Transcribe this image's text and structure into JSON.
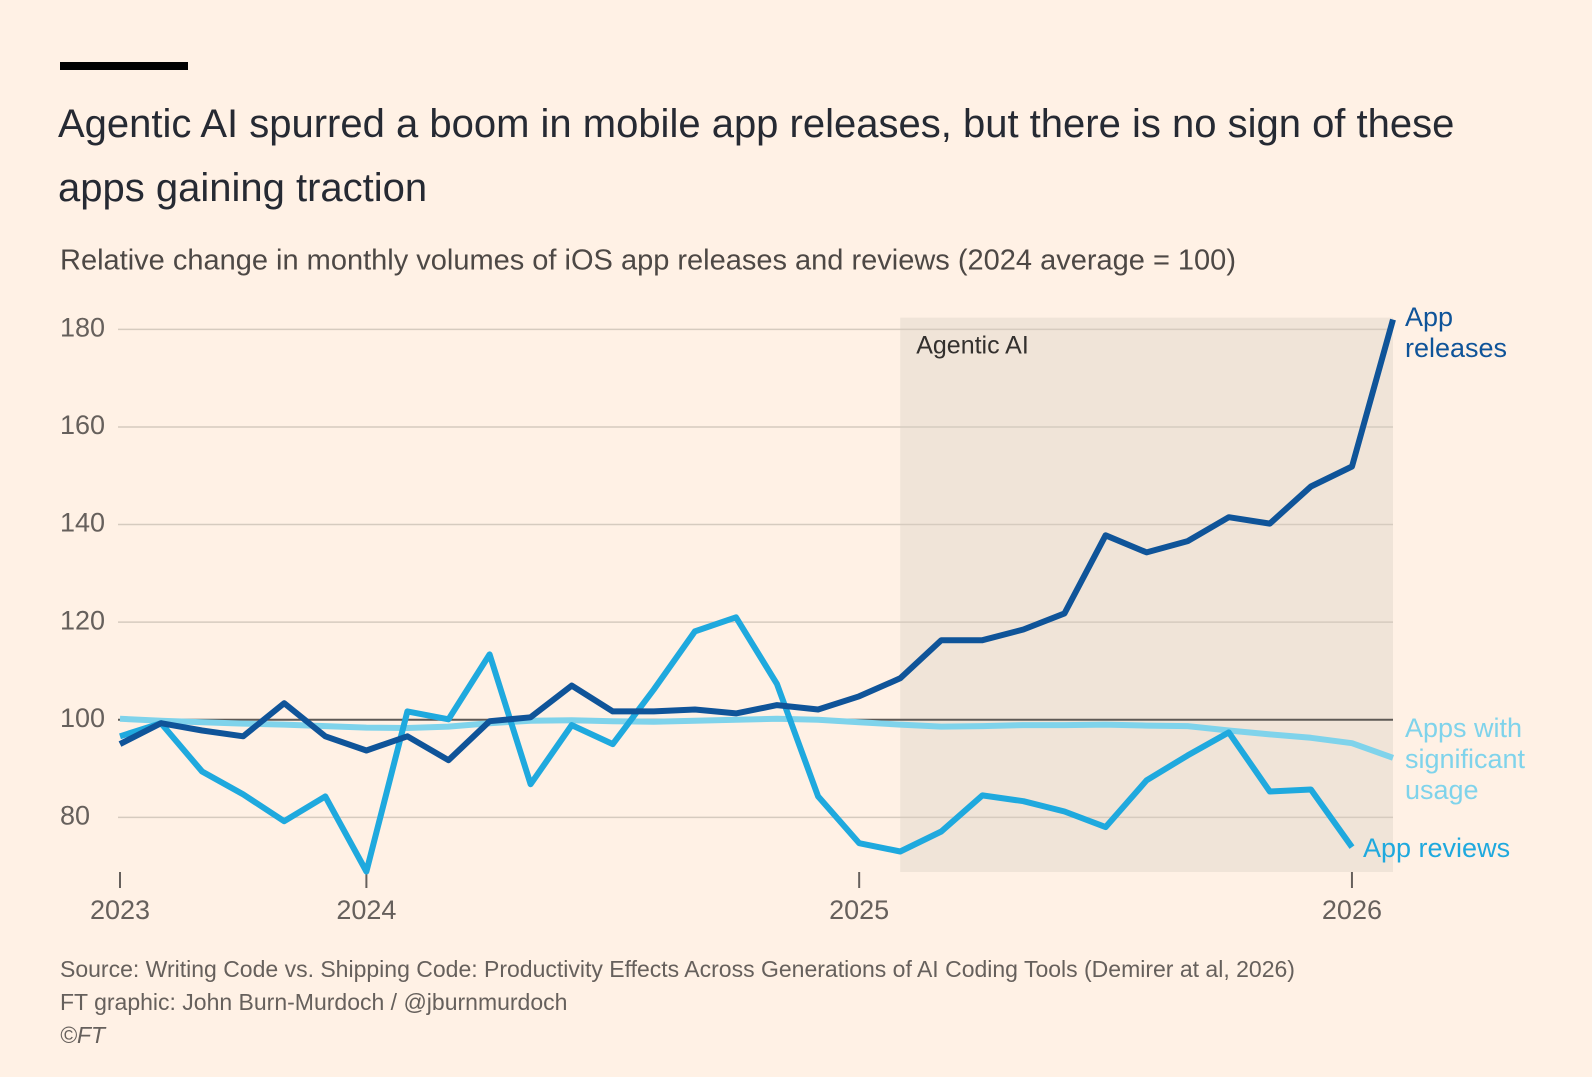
{
  "chart_data": {
    "type": "line",
    "title": "Agentic AI spurred a boom in mobile app releases, but there is no sign of these apps gaining traction",
    "subtitle": "Relative change in monthly volumes of iOS app releases and reviews (2024 average = 100)",
    "source": "Source: Writing Code vs. Shipping Code: Productivity Effects Across Generations of AI Coding Tools (Demirer at al, 2026)",
    "credit": "FT graphic: John Burn-Murdoch / @jburnmurdoch",
    "copyright": "©FT",
    "shade": {
      "label": "Agentic AI",
      "x": [
        2025.0833,
        2026.0833
      ]
    },
    "reference_line": 100,
    "x": [
      2023.5,
      2023.5833,
      2023.6667,
      2023.75,
      2023.8333,
      2023.9167,
      2024,
      2024.0833,
      2024.1667,
      2024.25,
      2024.3333,
      2024.4167,
      2024.5,
      2024.5833,
      2024.6667,
      2024.75,
      2024.8333,
      2024.9167,
      2025,
      2025.0833,
      2025.1667,
      2025.25,
      2025.3333,
      2025.4167,
      2025.5,
      2025.5833,
      2025.6667,
      2025.75,
      2025.8333,
      2025.9167,
      2026,
      2026.0833
    ],
    "series": [
      {
        "name": "Apps with significant usage",
        "color": "#7fd3eb",
        "values": [
          100.2,
          99.8,
          99.5,
          99.2,
          99.0,
          98.7,
          98.4,
          98.3,
          98.6,
          99.3,
          99.8,
          99.9,
          99.7,
          99.6,
          99.8,
          100.0,
          100.2,
          100.0,
          99.5,
          99.0,
          98.6,
          98.7,
          98.9,
          98.9,
          99.0,
          98.8,
          98.7,
          97.8,
          97.0,
          96.3,
          95.2,
          92.2
        ]
      },
      {
        "name": "App reviews",
        "color": "#1fa9de",
        "values": [
          96.6,
          99.3,
          89.4,
          84.7,
          79.2,
          84.3,
          68.9,
          101.7,
          100.1,
          113.4,
          86.8,
          98.9,
          95.0,
          106.2,
          118.1,
          121.0,
          107.3,
          84.3,
          74.7,
          73.0,
          77.1,
          84.5,
          83.3,
          81.2,
          78.0,
          87.6,
          92.7,
          97.4,
          85.3,
          85.7,
          73.9,
          null
        ]
      },
      {
        "name": "App releases",
        "color": "#0f5499",
        "values": [
          95.0,
          99.3,
          97.8,
          96.6,
          103.4,
          96.6,
          93.7,
          96.6,
          91.7,
          99.7,
          100.5,
          107.0,
          101.7,
          101.7,
          102.1,
          101.3,
          103.0,
          102.1,
          104.8,
          108.5,
          116.3,
          116.3,
          118.5,
          121.8,
          137.8,
          134.3,
          136.6,
          141.5,
          140.2,
          147.8,
          151.9,
          182.0
        ]
      }
    ],
    "xlim": [
      2023.5,
      2026.0833
    ],
    "xticks": [
      {
        "value": 2023.5,
        "label": "2023"
      },
      {
        "value": 2024,
        "label": "2024"
      },
      {
        "value": 2025,
        "label": "2025"
      },
      {
        "value": 2026,
        "label": "2026"
      }
    ],
    "ylim": [
      68.8,
      182.4
    ],
    "yticks": [
      80,
      100,
      120,
      140,
      160,
      180
    ],
    "grid": true
  }
}
